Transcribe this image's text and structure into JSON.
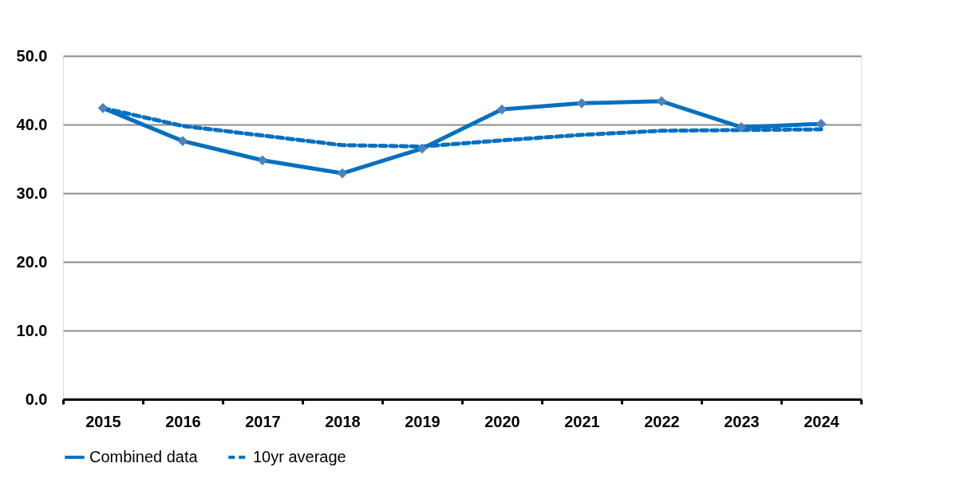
{
  "chart_data": {
    "type": "line",
    "categories": [
      "2015",
      "2016",
      "2017",
      "2018",
      "2019",
      "2020",
      "2021",
      "2022",
      "2023",
      "2024"
    ],
    "series": [
      {
        "name": "Combined data",
        "color": "#0070c0",
        "marker": "diamond",
        "line_style": "solid",
        "values": [
          42.4,
          37.6,
          34.8,
          32.9,
          36.5,
          42.2,
          43.1,
          43.4,
          39.6,
          40.1
        ]
      },
      {
        "name": "10yr average",
        "color": "#0070c0",
        "marker": "none",
        "line_style": "dashed",
        "values": [
          42.4,
          39.8,
          38.4,
          37.0,
          36.8,
          37.7,
          38.5,
          39.1,
          39.2,
          39.3
        ]
      }
    ],
    "ylim": [
      0,
      50
    ],
    "yticks": [
      {
        "value": 0,
        "label": "0.0"
      },
      {
        "value": 10,
        "label": "10.0"
      },
      {
        "value": 20,
        "label": "20.0"
      },
      {
        "value": 30,
        "label": "30.0"
      },
      {
        "value": 40,
        "label": "40.0"
      },
      {
        "value": 50,
        "label": "50.0"
      }
    ],
    "grid": "y",
    "legend": "bottom"
  }
}
